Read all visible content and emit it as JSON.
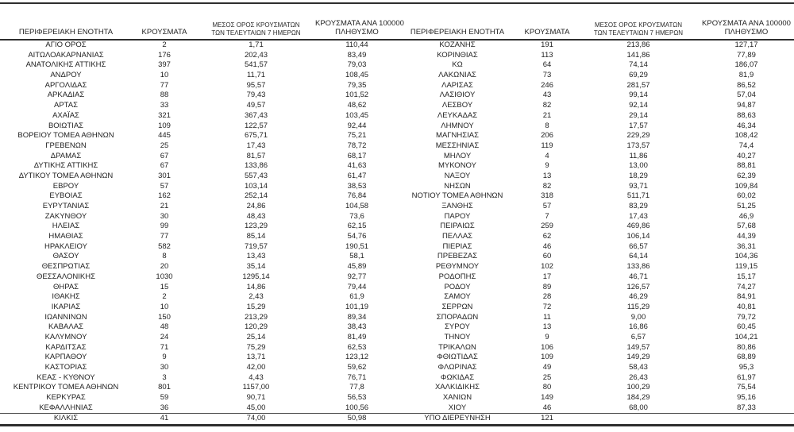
{
  "page": {
    "background_color": "#ffffff",
    "text_color": "#1f1f1f",
    "rule_color": "#2e2e2e"
  },
  "table": {
    "headers": {
      "region": "ΠΕΡΙΦΕΡΕΙΑΚΗ ΕΝΟΤΗΤΑ",
      "cases": "ΚΡΟΥΣΜΑΤΑ",
      "avg7_line1": "ΜΕΣΟΣ ΟΡΟΣ ΚΡΟΥΣΜΑΤΩΝ",
      "avg7_line2": "ΤΩΝ ΤΕΛΕΥΤΑΙΩΝ 7 ΗΜΕΡΩΝ",
      "per100k_line1": "ΚΡΟΥΣΜΑΤΑ ΑΝΑ 100000",
      "per100k_line2": "ΠΛΗΘΥΣΜΟ"
    },
    "left_rows": [
      [
        "ΑΓΙΟ ΟΡΟΣ",
        "2",
        "1,71",
        "110,44"
      ],
      [
        "ΑΙΤΩΛΟΑΚΑΡΝΑΝΙΑΣ",
        "176",
        "202,43",
        "83,49"
      ],
      [
        "ΑΝΑΤΟΛΙΚΗΣ ΑΤΤΙΚΗΣ",
        "397",
        "541,57",
        "79,03"
      ],
      [
        "ΑΝΔΡΟΥ",
        "10",
        "11,71",
        "108,45"
      ],
      [
        "ΑΡΓΟΛΙΔΑΣ",
        "77",
        "95,57",
        "79,35"
      ],
      [
        "ΑΡΚΑΔΙΑΣ",
        "88",
        "79,43",
        "101,52"
      ],
      [
        "ΑΡΤΑΣ",
        "33",
        "49,57",
        "48,62"
      ],
      [
        "ΑΧΑΪΑΣ",
        "321",
        "367,43",
        "103,45"
      ],
      [
        "ΒΟΙΩΤΙΑΣ",
        "109",
        "122,57",
        "92,44"
      ],
      [
        "ΒΟΡΕΙΟΥ ΤΟΜΕΑ ΑΘΗΝΩΝ",
        "445",
        "675,71",
        "75,21"
      ],
      [
        "ΓΡΕΒΕΝΩΝ",
        "25",
        "17,43",
        "78,72"
      ],
      [
        "ΔΡΑΜΑΣ",
        "67",
        "81,57",
        "68,17"
      ],
      [
        "ΔΥΤΙΚΗΣ ΑΤΤΙΚΗΣ",
        "67",
        "133,86",
        "41,63"
      ],
      [
        "ΔΥΤΙΚΟΥ ΤΟΜΕΑ ΑΘΗΝΩΝ",
        "301",
        "557,43",
        "61,47"
      ],
      [
        "ΕΒΡΟΥ",
        "57",
        "103,14",
        "38,53"
      ],
      [
        "ΕΥΒΟΙΑΣ",
        "162",
        "252,14",
        "76,84"
      ],
      [
        "ΕΥΡΥΤΑΝΙΑΣ",
        "21",
        "24,86",
        "104,58"
      ],
      [
        "ΖΑΚΥΝΘΟΥ",
        "30",
        "48,43",
        "73,6"
      ],
      [
        "ΗΛΕΙΑΣ",
        "99",
        "123,29",
        "62,15"
      ],
      [
        "ΗΜΑΘΙΑΣ",
        "77",
        "85,14",
        "54,76"
      ],
      [
        "ΗΡΑΚΛΕΙΟΥ",
        "582",
        "719,57",
        "190,51"
      ],
      [
        "ΘΑΣΟΥ",
        "8",
        "13,43",
        "58,1"
      ],
      [
        "ΘΕΣΠΡΩΤΙΑΣ",
        "20",
        "35,14",
        "45,89"
      ],
      [
        "ΘΕΣΣΑΛΟΝΙΚΗΣ",
        "1030",
        "1295,14",
        "92,77"
      ],
      [
        "ΘΗΡΑΣ",
        "15",
        "14,86",
        "79,44"
      ],
      [
        "ΙΘΑΚΗΣ",
        "2",
        "2,43",
        "61,9"
      ],
      [
        "ΙΚΑΡΙΑΣ",
        "10",
        "15,29",
        "101,19"
      ],
      [
        "ΙΩΑΝΝΙΝΩΝ",
        "150",
        "213,29",
        "89,34"
      ],
      [
        "ΚΑΒΑΛΑΣ",
        "48",
        "120,29",
        "38,43"
      ],
      [
        "ΚΑΛΥΜΝΟΥ",
        "24",
        "25,14",
        "81,49"
      ],
      [
        "ΚΑΡΔΙΤΣΑΣ",
        "71",
        "75,29",
        "62,53"
      ],
      [
        "ΚΑΡΠΑΘΟΥ",
        "9",
        "13,71",
        "123,12"
      ],
      [
        "ΚΑΣΤΟΡΙΑΣ",
        "30",
        "42,00",
        "59,62"
      ],
      [
        "ΚΕΑΣ - ΚΥΘΝΟΥ",
        "3",
        "4,43",
        "76,71"
      ],
      [
        "ΚΕΝΤΡΙΚΟΥ ΤΟΜΕΑ ΑΘΗΝΩΝ",
        "801",
        "1157,00",
        "77,8"
      ],
      [
        "ΚΕΡΚΥΡΑΣ",
        "59",
        "90,71",
        "56,53"
      ],
      [
        "ΚΕΦΑΛΛΗΝΙΑΣ",
        "36",
        "45,00",
        "100,56"
      ],
      [
        "ΚΙΛΚΙΣ",
        "41",
        "74,00",
        "50,98"
      ]
    ],
    "right_rows": [
      [
        "ΚΟΖΑΝΗΣ",
        "191",
        "213,86",
        "127,17"
      ],
      [
        "ΚΟΡΙΝΘΙΑΣ",
        "113",
        "141,86",
        "77,89"
      ],
      [
        "ΚΩ",
        "64",
        "74,14",
        "186,07"
      ],
      [
        "ΛΑΚΩΝΙΑΣ",
        "73",
        "69,29",
        "81,9"
      ],
      [
        "ΛΑΡΙΣΑΣ",
        "246",
        "281,57",
        "86,52"
      ],
      [
        "ΛΑΣΙΘΙΟΥ",
        "43",
        "99,14",
        "57,04"
      ],
      [
        "ΛΕΣΒΟΥ",
        "82",
        "92,14",
        "94,87"
      ],
      [
        "ΛΕΥΚΑΔΑΣ",
        "21",
        "29,14",
        "88,63"
      ],
      [
        "ΛΗΜΝΟΥ",
        "8",
        "17,57",
        "46,34"
      ],
      [
        "ΜΑΓΝΗΣΙΑΣ",
        "206",
        "229,29",
        "108,42"
      ],
      [
        "ΜΕΣΣΗΝΙΑΣ",
        "119",
        "173,57",
        "74,4"
      ],
      [
        "ΜΗΛΟΥ",
        "4",
        "11,86",
        "40,27"
      ],
      [
        "ΜΥΚΟΝΟΥ",
        "9",
        "13,00",
        "88,81"
      ],
      [
        "ΝΑΞΟΥ",
        "13",
        "18,29",
        "62,39"
      ],
      [
        "ΝΗΣΩΝ",
        "82",
        "93,71",
        "109,84"
      ],
      [
        "ΝΟΤΙΟΥ ΤΟΜΕΑ ΑΘΗΝΩΝ",
        "318",
        "511,71",
        "60,02"
      ],
      [
        "ΞΑΝΘΗΣ",
        "57",
        "83,29",
        "51,25"
      ],
      [
        "ΠΑΡΟΥ",
        "7",
        "17,43",
        "46,9"
      ],
      [
        "ΠΕΙΡΑΙΩΣ",
        "259",
        "469,86",
        "57,68"
      ],
      [
        "ΠΕΛΛΑΣ",
        "62",
        "106,14",
        "44,39"
      ],
      [
        "ΠΙΕΡΙΑΣ",
        "46",
        "66,57",
        "36,31"
      ],
      [
        "ΠΡΕΒΕΖΑΣ",
        "60",
        "64,14",
        "104,36"
      ],
      [
        "ΡΕΘΥΜΝΟΥ",
        "102",
        "133,86",
        "119,15"
      ],
      [
        "ΡΟΔΟΠΗΣ",
        "17",
        "46,71",
        "15,17"
      ],
      [
        "ΡΟΔΟΥ",
        "89",
        "126,57",
        "74,27"
      ],
      [
        "ΣΑΜΟΥ",
        "28",
        "46,29",
        "84,91"
      ],
      [
        "ΣΕΡΡΩΝ",
        "72",
        "115,29",
        "40,81"
      ],
      [
        "ΣΠΟΡΑΔΩΝ",
        "11",
        "9,00",
        "79,72"
      ],
      [
        "ΣΥΡΟΥ",
        "13",
        "16,86",
        "60,45"
      ],
      [
        "ΤΗΝΟΥ",
        "9",
        "6,57",
        "104,21"
      ],
      [
        "ΤΡΙΚΑΛΩΝ",
        "106",
        "149,57",
        "80,86"
      ],
      [
        "ΦΘΙΩΤΙΔΑΣ",
        "109",
        "149,29",
        "68,89"
      ],
      [
        "ΦΛΩΡΙΝΑΣ",
        "49",
        "58,43",
        "95,3"
      ],
      [
        "ΦΩΚΙΔΑΣ",
        "25",
        "26,43",
        "61,97"
      ],
      [
        "ΧΑΛΚΙΔΙΚΗΣ",
        "80",
        "100,29",
        "75,54"
      ],
      [
        "ΧΑΝΙΩΝ",
        "149",
        "184,29",
        "95,16"
      ],
      [
        "ΧΙΟΥ",
        "46",
        "68,00",
        "87,33"
      ],
      [
        "ΥΠΟ ΔΙΕΡΕΥΝΗΣΗ",
        "121",
        "",
        ""
      ]
    ]
  }
}
